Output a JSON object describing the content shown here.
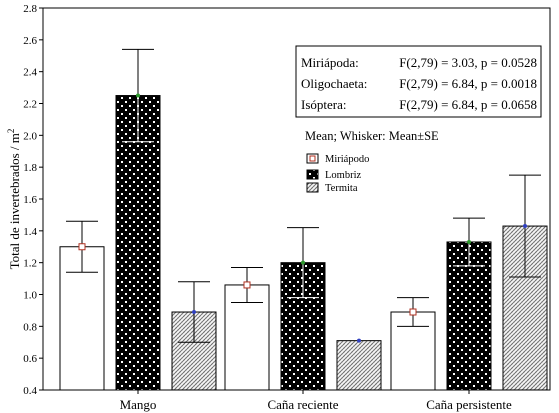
{
  "chart_data": {
    "type": "bar",
    "ylabel": "Total de invertebrados / m",
    "ylabel_superscript": "2",
    "ylim": [
      0.4,
      2.8
    ],
    "yticks": [
      "0.4",
      "0.6",
      "0.8",
      "1.0",
      "1.2",
      "1.4",
      "1.6",
      "1.8",
      "2.0",
      "2.2",
      "2.4",
      "2.6",
      "2.8"
    ],
    "categories": [
      "Mango",
      "Caña reciente",
      "Caña persistente"
    ],
    "series": [
      {
        "name": "Miriápodo",
        "values": [
          1.3,
          1.06,
          0.89
        ],
        "se": [
          0.16,
          0.11,
          0.09
        ],
        "marker_color": "#b03020"
      },
      {
        "name": "Lombriz",
        "values": [
          2.25,
          1.2,
          1.33
        ],
        "se": [
          0.29,
          0.22,
          0.15
        ],
        "marker_color": "#2e9a2e"
      },
      {
        "name": "Termita",
        "values": [
          0.89,
          0.71,
          1.43
        ],
        "se": [
          0.19,
          0.0,
          0.32
        ],
        "marker_color": "#3040c0"
      }
    ],
    "stats": [
      {
        "label": "Miriápoda:",
        "text": "F(2,79) = 3.03, p = 0.0528"
      },
      {
        "label": "Oligochaeta:",
        "text": "F(2,79) = 6.84, p = 0.0018"
      },
      {
        "label": "Isóptera:",
        "text": "F(2,79) = 6.84, p = 0.0658"
      }
    ],
    "legend_title": "Mean; Whisker: Mean±SE",
    "legend_placement": "top-right",
    "grid": false
  }
}
